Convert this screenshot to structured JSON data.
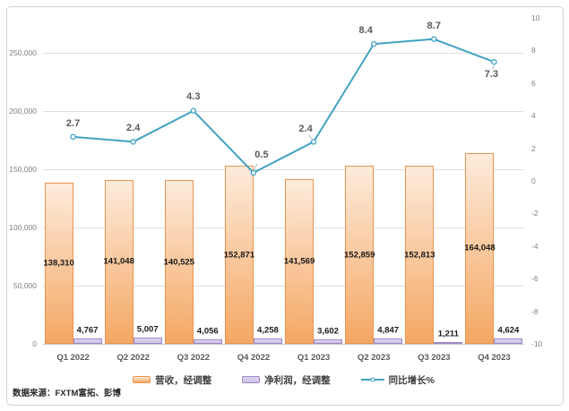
{
  "chart_data": {
    "type": "combo",
    "categories": [
      "Q1 2022",
      "Q2 2022",
      "Q3 2022",
      "Q4 2022",
      "Q1 2023",
      "Q2 2023",
      "Q3 2023",
      "Q4 2023"
    ],
    "series": [
      {
        "name": "营收，经调整",
        "type": "bar",
        "axis": "left",
        "values": [
          138310,
          141048,
          140525,
          152871,
          141569,
          152859,
          152813,
          164048
        ]
      },
      {
        "name": "净利润，经调整",
        "type": "bar",
        "axis": "left",
        "values": [
          4767,
          5007,
          4056,
          4258,
          3602,
          4847,
          1211,
          4624
        ]
      },
      {
        "name": "同比增长%",
        "type": "line",
        "axis": "right",
        "values": [
          2.7,
          2.4,
          4.3,
          0.5,
          2.4,
          8.4,
          8.7,
          7.3
        ]
      }
    ],
    "left_axis": {
      "min": 0,
      "max": 280000,
      "ticks": [
        0,
        50000,
        100000,
        150000,
        200000,
        250000
      ]
    },
    "right_axis": {
      "min": -10,
      "max": 10,
      "ticks": [
        -10,
        -8,
        -6,
        -4,
        -2,
        0,
        2,
        4,
        6,
        8,
        10
      ]
    },
    "grid": true,
    "legend_position": "bottom",
    "source_note": "数据来源：FXTM富拓、彭博",
    "colors": {
      "revenue_fill_top": "#FDEBDB",
      "revenue_fill_bottom": "#F4A763",
      "revenue_border": "#E89450",
      "profit_fill_top": "#DDD5EF",
      "profit_fill_bottom": "#CDC1E3",
      "profit_border": "#9C88C6",
      "growth_line": "#42A2C2",
      "grid_line": "#DEDEDE",
      "axis_text": "#7F7F7F",
      "line_label_text": "#595959"
    }
  }
}
